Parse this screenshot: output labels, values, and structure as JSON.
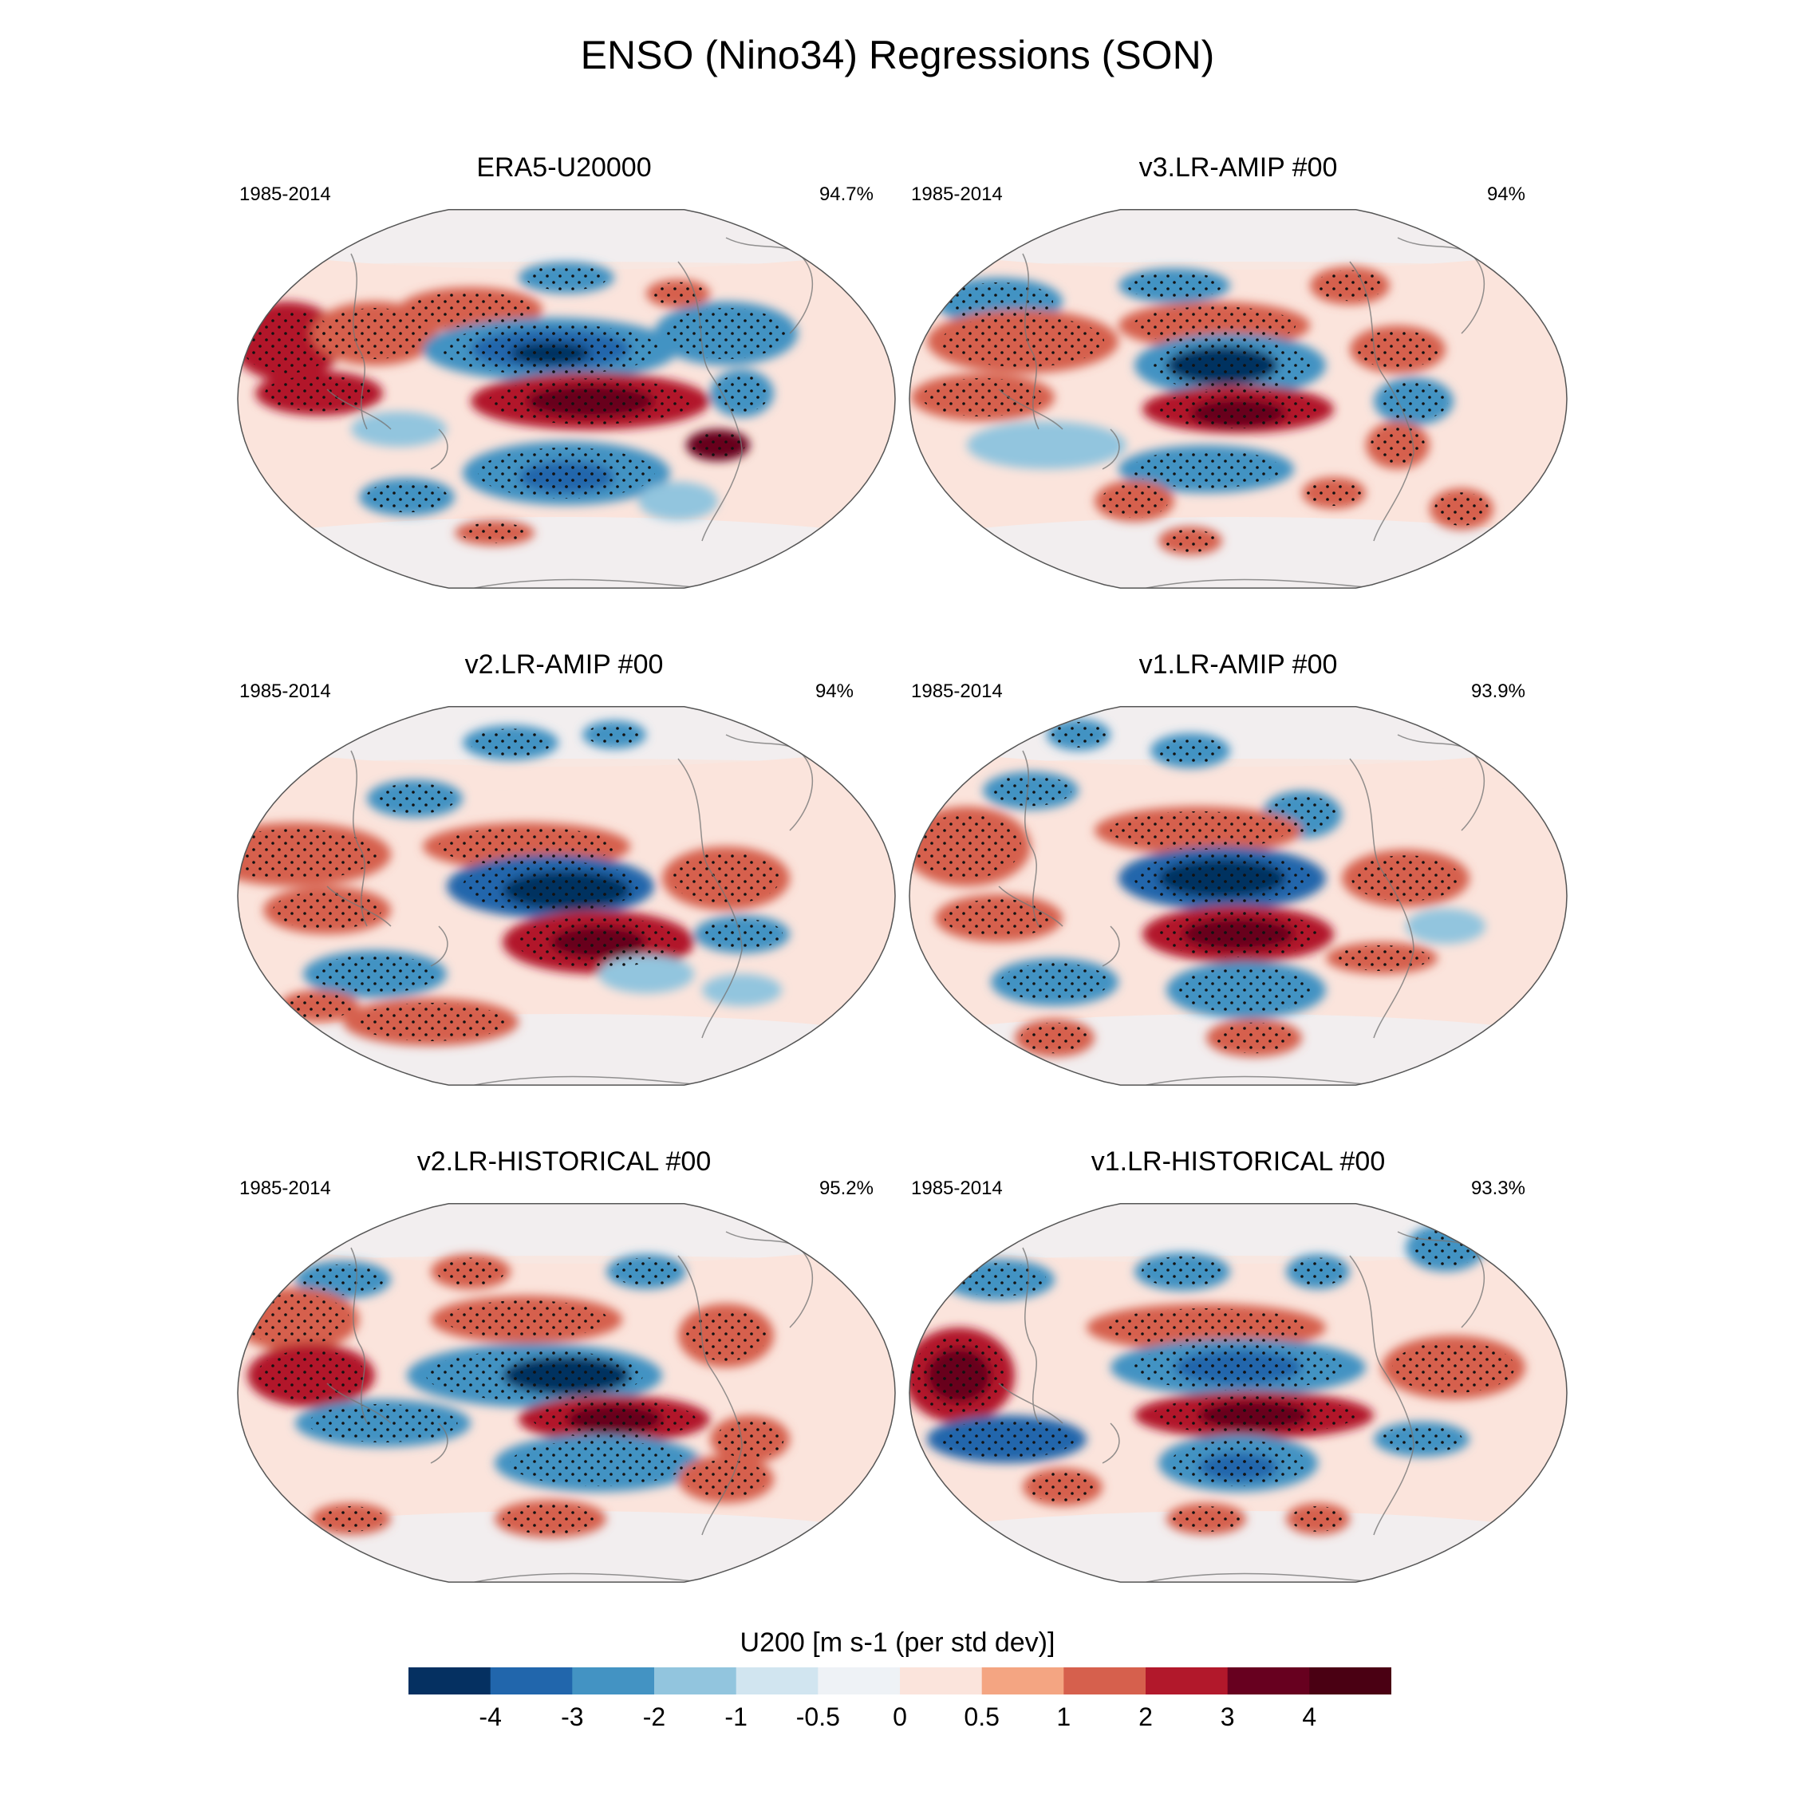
{
  "title": "ENSO (Nino34) Regressions (SON)",
  "chart_data": {
    "type": "heatmap",
    "projection": "Robinson (global, centered on 180°)",
    "variable": "U200",
    "colorbar": {
      "title": "U200 [m s-1 (per std dev)]",
      "tick_labels": [
        "-4",
        "-3",
        "-2",
        "-1",
        "-0.5",
        "0",
        "0.5",
        "1",
        "2",
        "3",
        "4"
      ],
      "colors": [
        "#053061",
        "#2166ac",
        "#4393c3",
        "#92c5de",
        "#d1e5f0",
        "#eef2f6",
        "#fbe4dc",
        "#f4a582",
        "#d6604d",
        "#b2182b",
        "#67001f",
        "#4a0013"
      ],
      "extend": "both"
    },
    "panels": [
      {
        "title": "ERA5-U20000",
        "period": "1985-2014",
        "percent": "94.7%"
      },
      {
        "title": "v3.LR-AMIP  #00",
        "period": "1985-2014",
        "percent": "94%"
      },
      {
        "title": "v2.LR-AMIP  #00",
        "period": "1985-2014",
        "percent": "94%"
      },
      {
        "title": "v1.LR-AMIP  #00",
        "period": "1985-2014",
        "percent": "93.9%"
      },
      {
        "title": "v2.LR-HISTORICAL  #00",
        "period": "1985-2014",
        "percent": "95.2%"
      },
      {
        "title": "v1.LR-HISTORICAL  #00",
        "period": "1985-2014",
        "percent": "93.3%"
      }
    ],
    "stippling": "dots indicate statistical significance"
  }
}
